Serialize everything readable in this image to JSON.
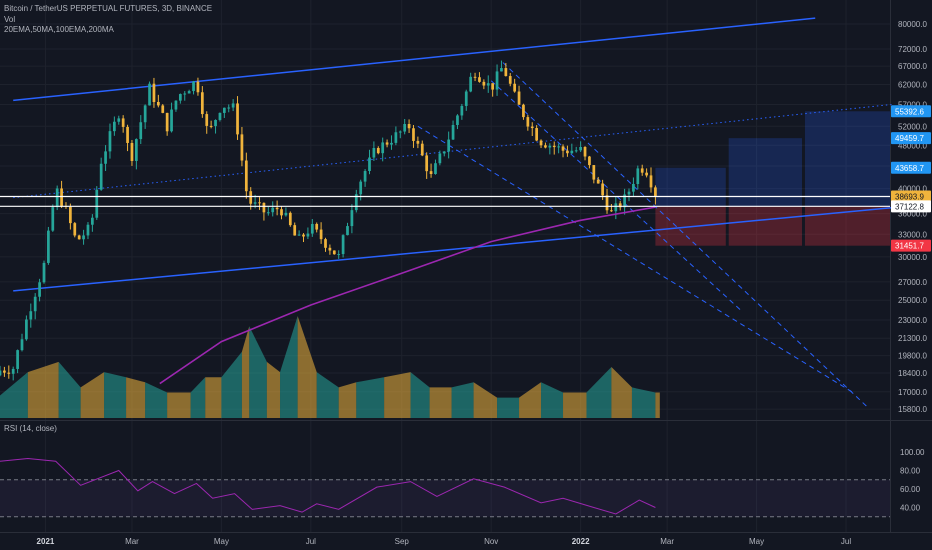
{
  "header": {
    "symbol_line": "Bitcoin / TetherUS PERPETUAL FUTURES, 3D, BINANCE",
    "vol_label": "Vol",
    "ma_label": "20EMA,50MA,100EMA,200MA"
  },
  "rsi": {
    "label": "RSI (14, close)",
    "overbought": 70,
    "oversold": 30,
    "ticks": [
      100,
      80,
      60,
      40
    ]
  },
  "colors": {
    "background": "#131722",
    "grid": "#1e222d",
    "bull": "#26a69a",
    "bear": "#f0b43c",
    "trend_line": "#2962ff",
    "ma200": "#9c27b0",
    "rsi_line": "#9c27b0",
    "marker_current": "#f0b43c",
    "marker_blue": "#2196f3",
    "marker_red": "#f23645",
    "marker_white": "#ffffff"
  },
  "price_axis": {
    "ticks": [
      "80000.0",
      "72000.0",
      "67000.0",
      "62000.0",
      "57000.0",
      "52000.0",
      "48000.0",
      "44000.0",
      "40000.0",
      "36000.0",
      "33000.0",
      "30000.0",
      "27000.0",
      "25000.0",
      "23000.0",
      "21300.0",
      "19800.0",
      "18400.0",
      "17000.0",
      "15800.0"
    ],
    "markers": [
      {
        "label": "55392.6",
        "style": "blue"
      },
      {
        "label": "49459.7",
        "style": "blue"
      },
      {
        "label": "43658.7",
        "style": "blue"
      },
      {
        "label": "38693.9",
        "style": "current"
      },
      {
        "label": "37122.8",
        "style": "white"
      },
      {
        "label": "31451.7",
        "style": "red"
      }
    ]
  },
  "time_axis": {
    "labels": [
      "2021",
      "Mar",
      "May",
      "Jul",
      "Sep",
      "Nov",
      "2022",
      "Mar",
      "May",
      "Jul"
    ]
  },
  "chart_data": {
    "type": "candlestick",
    "scale": "log",
    "timeframe": "3D",
    "ylim": [
      15000,
      82000
    ],
    "x_range": [
      "2020-12-01",
      "2022-07-31"
    ],
    "closes": [
      {
        "date": "2020-12-01",
        "close": 18600
      },
      {
        "date": "2020-12-10",
        "close": 18800
      },
      {
        "date": "2020-12-20",
        "close": 23500
      },
      {
        "date": "2020-12-31",
        "close": 29000
      },
      {
        "date": "2021-01-08",
        "close": 40000
      },
      {
        "date": "2021-01-14",
        "close": 37000
      },
      {
        "date": "2021-01-22",
        "close": 32000
      },
      {
        "date": "2021-02-01",
        "close": 34000
      },
      {
        "date": "2021-02-08",
        "close": 45000
      },
      {
        "date": "2021-02-21",
        "close": 56000
      },
      {
        "date": "2021-02-28",
        "close": 45000
      },
      {
        "date": "2021-03-13",
        "close": 61000
      },
      {
        "date": "2021-03-25",
        "close": 52000
      },
      {
        "date": "2021-04-01",
        "close": 59000
      },
      {
        "date": "2021-04-14",
        "close": 63000
      },
      {
        "date": "2021-04-22",
        "close": 50000
      },
      {
        "date": "2021-05-01",
        "close": 57000
      },
      {
        "date": "2021-05-10",
        "close": 56000
      },
      {
        "date": "2021-05-13",
        "close": 49000
      },
      {
        "date": "2021-05-19",
        "close": 38000
      },
      {
        "date": "2021-06-01",
        "close": 36000
      },
      {
        "date": "2021-06-10",
        "close": 37000
      },
      {
        "date": "2021-06-22",
        "close": 32000
      },
      {
        "date": "2021-07-01",
        "close": 34000
      },
      {
        "date": "2021-07-20",
        "close": 30000
      },
      {
        "date": "2021-08-01",
        "close": 40000
      },
      {
        "date": "2021-08-14",
        "close": 47000
      },
      {
        "date": "2021-09-06",
        "close": 52000
      },
      {
        "date": "2021-09-21",
        "close": 42000
      },
      {
        "date": "2021-10-01",
        "close": 48000
      },
      {
        "date": "2021-10-15",
        "close": 60000
      },
      {
        "date": "2021-10-20",
        "close": 66000
      },
      {
        "date": "2021-11-01",
        "close": 61000
      },
      {
        "date": "2021-11-09",
        "close": 67000
      },
      {
        "date": "2021-11-19",
        "close": 57000
      },
      {
        "date": "2021-12-04",
        "close": 49000
      },
      {
        "date": "2021-12-20",
        "close": 47000
      },
      {
        "date": "2022-01-01",
        "close": 47000
      },
      {
        "date": "2022-01-10",
        "close": 42000
      },
      {
        "date": "2022-01-22",
        "close": 36000
      },
      {
        "date": "2022-02-01",
        "close": 38500
      },
      {
        "date": "2022-02-10",
        "close": 44000
      },
      {
        "date": "2022-02-16",
        "close": 43000
      },
      {
        "date": "2022-02-21",
        "close": 38693.9
      }
    ],
    "ma200": [
      {
        "date": "2021-03-20",
        "value": 17600
      },
      {
        "date": "2021-05-01",
        "value": 21000
      },
      {
        "date": "2021-07-01",
        "value": 24500
      },
      {
        "date": "2021-09-01",
        "value": 28000
      },
      {
        "date": "2021-11-01",
        "value": 32000
      },
      {
        "date": "2022-01-01",
        "value": 35000
      },
      {
        "date": "2022-02-21",
        "value": 37000
      }
    ],
    "volume": [
      {
        "date": "2020-12-01",
        "rel": 0.22
      },
      {
        "date": "2020-12-20",
        "rel": 0.45
      },
      {
        "date": "2021-01-10",
        "rel": 0.55
      },
      {
        "date": "2021-01-25",
        "rel": 0.3
      },
      {
        "date": "2021-02-10",
        "rel": 0.45
      },
      {
        "date": "2021-02-25",
        "rel": 0.4
      },
      {
        "date": "2021-03-10",
        "rel": 0.35
      },
      {
        "date": "2021-03-25",
        "rel": 0.25
      },
      {
        "date": "2021-04-10",
        "rel": 0.25
      },
      {
        "date": "2021-04-20",
        "rel": 0.4
      },
      {
        "date": "2021-05-01",
        "rel": 0.4
      },
      {
        "date": "2021-05-15",
        "rel": 0.65
      },
      {
        "date": "2021-05-20",
        "rel": 0.9
      },
      {
        "date": "2021-06-01",
        "rel": 0.55
      },
      {
        "date": "2021-06-10",
        "rel": 0.45
      },
      {
        "date": "2021-06-22",
        "rel": 1.0
      },
      {
        "date": "2021-07-05",
        "rel": 0.45
      },
      {
        "date": "2021-07-20",
        "rel": 0.3
      },
      {
        "date": "2021-08-01",
        "rel": 0.35
      },
      {
        "date": "2021-08-20",
        "rel": 0.4
      },
      {
        "date": "2021-09-07",
        "rel": 0.45
      },
      {
        "date": "2021-09-20",
        "rel": 0.3
      },
      {
        "date": "2021-10-05",
        "rel": 0.3
      },
      {
        "date": "2021-10-20",
        "rel": 0.35
      },
      {
        "date": "2021-11-05",
        "rel": 0.2
      },
      {
        "date": "2021-11-20",
        "rel": 0.2
      },
      {
        "date": "2021-12-05",
        "rel": 0.35
      },
      {
        "date": "2021-12-20",
        "rel": 0.25
      },
      {
        "date": "2022-01-05",
        "rel": 0.25
      },
      {
        "date": "2022-01-22",
        "rel": 0.5
      },
      {
        "date": "2022-02-05",
        "rel": 0.3
      },
      {
        "date": "2022-02-21",
        "rel": 0.25
      }
    ],
    "rsi_values": [
      {
        "date": "2020-12-01",
        "value": 90
      },
      {
        "date": "2020-12-20",
        "value": 93
      },
      {
        "date": "2021-01-08",
        "value": 90
      },
      {
        "date": "2021-01-25",
        "value": 64
      },
      {
        "date": "2021-02-20",
        "value": 80
      },
      {
        "date": "2021-03-05",
        "value": 58
      },
      {
        "date": "2021-03-15",
        "value": 68
      },
      {
        "date": "2021-03-30",
        "value": 55
      },
      {
        "date": "2021-04-14",
        "value": 66
      },
      {
        "date": "2021-04-25",
        "value": 50
      },
      {
        "date": "2021-05-10",
        "value": 55
      },
      {
        "date": "2021-05-22",
        "value": 38
      },
      {
        "date": "2021-06-10",
        "value": 42
      },
      {
        "date": "2021-06-25",
        "value": 35
      },
      {
        "date": "2021-07-05",
        "value": 44
      },
      {
        "date": "2021-07-20",
        "value": 38
      },
      {
        "date": "2021-08-15",
        "value": 62
      },
      {
        "date": "2021-09-07",
        "value": 68
      },
      {
        "date": "2021-09-25",
        "value": 52
      },
      {
        "date": "2021-10-20",
        "value": 71
      },
      {
        "date": "2021-11-10",
        "value": 62
      },
      {
        "date": "2021-12-05",
        "value": 45
      },
      {
        "date": "2021-12-20",
        "value": 50
      },
      {
        "date": "2022-01-10",
        "value": 40
      },
      {
        "date": "2022-01-25",
        "value": 33
      },
      {
        "date": "2022-02-10",
        "value": 48
      },
      {
        "date": "2022-02-21",
        "value": 40
      }
    ],
    "trend_lines": [
      {
        "name": "upper_channel",
        "style": "solid",
        "from": {
          "date": "2020-12-10",
          "price": 58000
        },
        "to": {
          "date": "2022-06-10",
          "price": 82000
        }
      },
      {
        "name": "lower_channel",
        "style": "solid",
        "from": {
          "date": "2020-12-10",
          "price": 26000
        },
        "to": {
          "date": "2022-08-01",
          "price": 36900
        }
      },
      {
        "name": "mid_channel",
        "style": "dotted",
        "from": {
          "date": "2020-12-10",
          "price": 38500
        },
        "to": {
          "date": "2022-08-01",
          "price": 57000
        }
      },
      {
        "name": "down_trend_1",
        "style": "dashed",
        "from": {
          "date": "2021-11-09",
          "price": 68000
        },
        "to": {
          "date": "2022-07-15",
          "price": 16000
        }
      },
      {
        "name": "down_trend_2",
        "style": "dashed",
        "from": {
          "date": "2021-09-12",
          "price": 52000
        },
        "to": {
          "date": "2022-07-05",
          "price": 17000
        }
      },
      {
        "name": "down_trend_3",
        "style": "dashed",
        "from": {
          "date": "2021-11-01",
          "price": 63000
        },
        "to": {
          "date": "2022-04-20",
          "price": 24000
        }
      }
    ],
    "horizontal_levels": [
      38693.9,
      37122.8
    ],
    "positions": [
      {
        "from": "2022-02-21",
        "to": "2022-04-10",
        "entry": 37122.8,
        "target": 43658.7,
        "stop": 31451.7
      },
      {
        "from": "2022-04-12",
        "to": "2022-06-01",
        "entry": 37122.8,
        "target": 49459.7,
        "stop": 31451.7
      },
      {
        "from": "2022-06-03",
        "to": "2022-07-31",
        "entry": 37122.8,
        "target": 55392.6,
        "stop": 31451.7
      }
    ]
  }
}
